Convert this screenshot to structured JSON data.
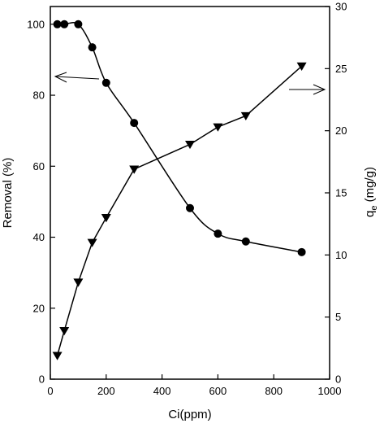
{
  "chart_data": {
    "type": "line",
    "x_axis": {
      "label": "Ci(ppm)",
      "range": [
        0,
        1000
      ],
      "ticks": [
        0,
        200,
        400,
        600,
        800,
        1000
      ],
      "tick_labels": [
        "0",
        "200",
        "400",
        "600",
        "800",
        "1000"
      ]
    },
    "y_axis_left": {
      "label": "Removal (%)",
      "range": [
        0,
        105
      ],
      "ticks": [
        0,
        20,
        40,
        60,
        80,
        100
      ],
      "tick_labels": [
        "0",
        "20",
        "40",
        "60",
        "80",
        "100"
      ]
    },
    "y_axis_right": {
      "label_main": "q",
      "label_sub": "e",
      "label_rest": " (mg/g)",
      "range": [
        0,
        30
      ],
      "ticks": [
        0,
        5,
        10,
        15,
        20,
        25,
        30
      ],
      "tick_labels": [
        "0",
        "5",
        "10",
        "15",
        "20",
        "25",
        "30"
      ]
    },
    "series": [
      {
        "axis": "left",
        "marker": "circle",
        "x": [
          25,
          50,
          100,
          150,
          200,
          300,
          500,
          600,
          700,
          900
        ],
        "y": [
          100,
          100,
          100,
          93.5,
          83.5,
          72.2,
          48.2,
          41.0,
          38.8,
          35.8
        ]
      },
      {
        "axis": "right",
        "marker": "triangle-down",
        "x": [
          25,
          50,
          100,
          150,
          200,
          300,
          500,
          600,
          700,
          900
        ],
        "y": [
          1.9,
          3.9,
          7.8,
          11.0,
          13.0,
          16.9,
          18.9,
          20.3,
          21.2,
          25.2
        ]
      }
    ],
    "annotations": [
      {
        "type": "arrow",
        "direction": "left",
        "points_to_axis": "left"
      },
      {
        "type": "arrow",
        "direction": "right",
        "points_to_axis": "right"
      }
    ],
    "grid": false,
    "legend": "none"
  }
}
